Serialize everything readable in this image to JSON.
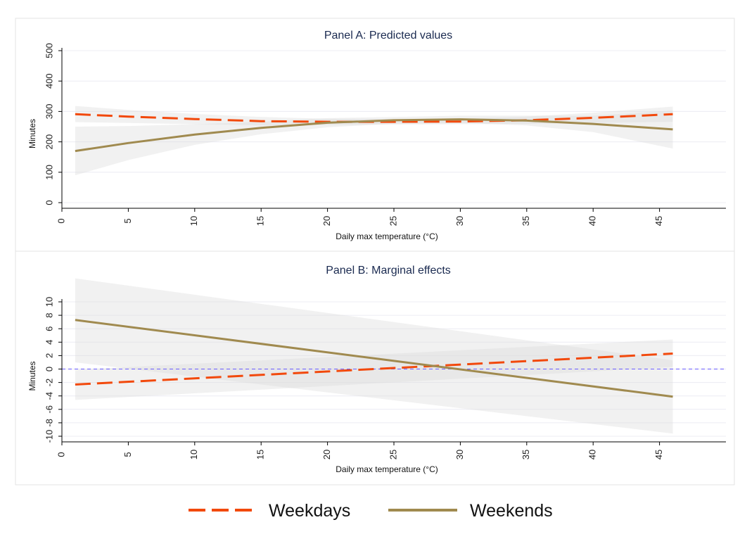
{
  "chart_data": [
    {
      "type": "line",
      "title": "Panel A: Predicted values",
      "xlabel": "Daily max temperature (°C)",
      "ylabel": "Minutes",
      "xlim": [
        0,
        50
      ],
      "ylim": [
        0,
        500
      ],
      "xticks": [
        0,
        5,
        10,
        15,
        20,
        25,
        30,
        35,
        40,
        45
      ],
      "yticks": [
        0,
        100,
        200,
        300,
        400,
        500
      ],
      "grid": true,
      "series": [
        {
          "name": "Weekdays",
          "style": "dashed",
          "color": "#f2490c",
          "x": [
            1,
            5,
            10,
            15,
            20,
            25,
            30,
            35,
            40,
            46
          ],
          "y": [
            291,
            283,
            275,
            268,
            266,
            266,
            267,
            271,
            279,
            291
          ],
          "ci_low": [
            265,
            262,
            258,
            254,
            256,
            257,
            258,
            259,
            262,
            266
          ],
          "ci_high": [
            318,
            305,
            292,
            282,
            276,
            275,
            276,
            283,
            296,
            316
          ]
        },
        {
          "name": "Weekends",
          "style": "solid",
          "color": "#a08a4f",
          "x": [
            1,
            5,
            10,
            15,
            20,
            25,
            30,
            35,
            40,
            46
          ],
          "y": [
            170,
            196,
            224,
            246,
            263,
            271,
            274,
            270,
            259,
            241
          ],
          "ci_low": [
            90,
            140,
            190,
            225,
            248,
            260,
            262,
            254,
            232,
            178
          ],
          "ci_high": [
            250,
            252,
            258,
            266,
            278,
            282,
            286,
            286,
            286,
            303
          ]
        }
      ]
    },
    {
      "type": "line",
      "title": "Panel B: Marginal effects",
      "xlabel": "Daily max temperature (°C)",
      "ylabel": "Minutes",
      "xlim": [
        0,
        50
      ],
      "ylim": [
        -10,
        10
      ],
      "xticks": [
        0,
        5,
        10,
        15,
        20,
        25,
        30,
        35,
        40,
        45
      ],
      "yticks": [
        -10,
        -8,
        -6,
        -4,
        -2,
        0,
        2,
        4,
        6,
        8,
        10
      ],
      "reference_line": 0,
      "grid": true,
      "series": [
        {
          "name": "Weekdays",
          "style": "dashed",
          "color": "#f2490c",
          "x": [
            1,
            46
          ],
          "y": [
            -2.3,
            2.3
          ],
          "ci_low": [
            -4.6,
            0.3
          ],
          "ci_high": [
            -0.1,
            4.4
          ]
        },
        {
          "name": "Weekends",
          "style": "solid",
          "color": "#a08a4f",
          "x": [
            1,
            46
          ],
          "y": [
            7.3,
            -4.1
          ],
          "ci_low": [
            1.0,
            -9.6
          ],
          "ci_high": [
            13.5,
            1.3
          ]
        }
      ]
    }
  ],
  "legend": {
    "position": "bottom",
    "items": [
      {
        "label": "Weekdays",
        "style": "dashed",
        "color": "#f2490c"
      },
      {
        "label": "Weekends",
        "style": "solid",
        "color": "#a08a4f"
      }
    ]
  }
}
